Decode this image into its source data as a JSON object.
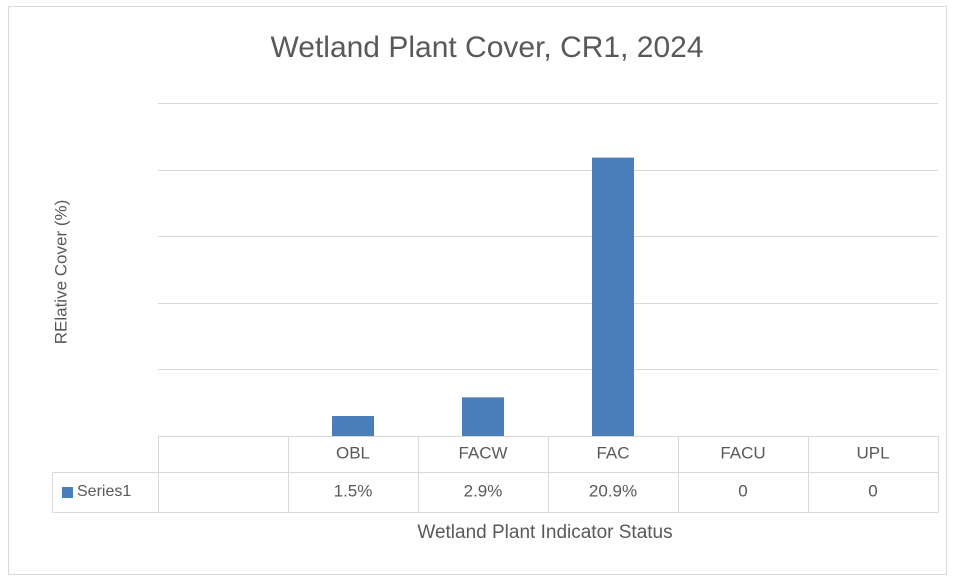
{
  "chart_data": {
    "type": "bar",
    "title": "Wetland Plant Cover, CR1, 2024",
    "x_label": "Wetland Plant Indicator Status",
    "y_label": "RElative Cover  (%)",
    "categories": [
      null,
      "OBL",
      "FACW",
      "FAC",
      "FACU",
      "UPL"
    ],
    "series": [
      {
        "name": "Series1",
        "color": "#4a7ebb",
        "values": [
          null,
          1.5,
          2.9,
          20.9,
          0,
          0
        ],
        "value_labels": [
          null,
          "1.5%",
          "2.9%",
          "20.9%",
          "0",
          "0"
        ]
      }
    ],
    "ylim": [
      0,
      25
    ],
    "yticks": [
      0,
      5,
      10,
      15,
      20,
      25
    ],
    "grid": true
  }
}
